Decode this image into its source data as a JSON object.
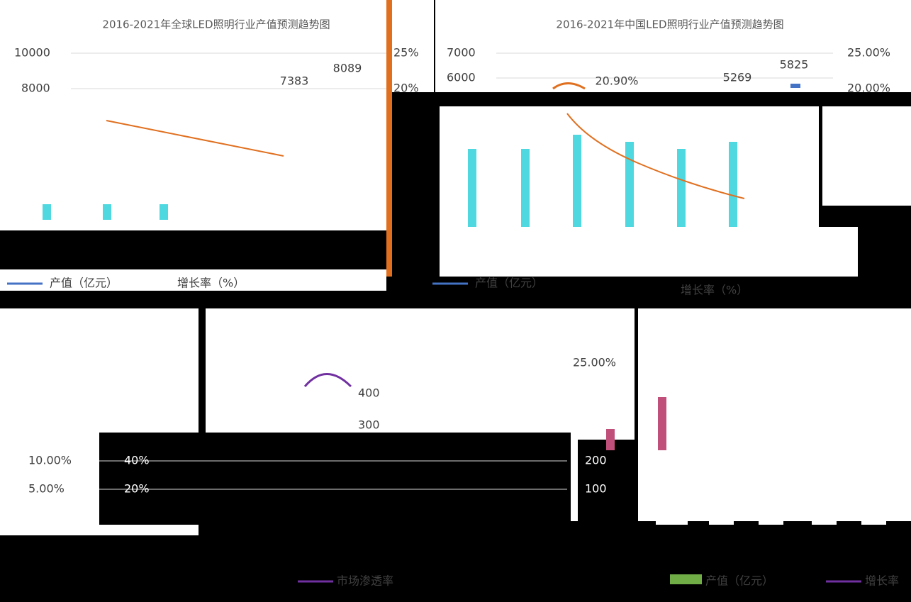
{
  "panels": [
    {
      "title": "2016-2021年全球LED照明行业产值预测趋势图",
      "left_ticks": [
        "10000",
        "8000"
      ],
      "right_ticks": [
        "25%",
        "20%"
      ],
      "labels": [
        "7383",
        "8089"
      ],
      "legend": [
        "产值（亿元）",
        "增长率（%）"
      ]
    },
    {
      "title": "2016-2021年中国LED照明行业产值预测趋势图",
      "left_ticks": [
        "7000",
        "6000"
      ],
      "right_ticks": [
        "25.00%",
        "20.00%"
      ],
      "labels": [
        "20.90%",
        "5269",
        "5825"
      ],
      "legend": [
        "产值（亿元）",
        "增长率（%）"
      ]
    },
    {
      "left_ticks": [
        "40%",
        "20%"
      ],
      "right_ticks": [
        "10.00%",
        "5.00%"
      ],
      "legend": [
        "市场渗透率"
      ]
    },
    {
      "left_ticks": [
        "400",
        "300",
        "200",
        "100"
      ],
      "right_ticks": [
        "25.00%"
      ],
      "legend": [
        "产值（亿元）",
        "增长率"
      ]
    }
  ]
}
